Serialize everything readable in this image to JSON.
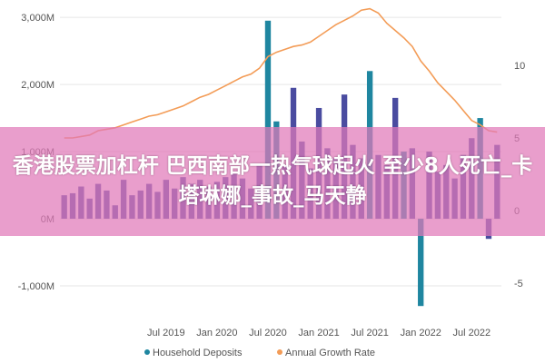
{
  "banner": {
    "text": "香港股票加杠杆 巴西南部一热气球起火 至少8人死亡_卡塔琳娜_事故_马天静"
  },
  "chart_data": {
    "type": "bar+line",
    "categories": [
      "2018-07",
      "2018-08",
      "2018-09",
      "2018-10",
      "2018-11",
      "2018-12",
      "2019-01",
      "2019-02",
      "2019-03",
      "2019-04",
      "2019-05",
      "2019-06",
      "2019-07",
      "2019-08",
      "2019-09",
      "2019-10",
      "2019-11",
      "2019-12",
      "2020-01",
      "2020-02",
      "2020-03",
      "2020-04",
      "2020-05",
      "2020-06",
      "2020-07",
      "2020-08",
      "2020-09",
      "2020-10",
      "2020-11",
      "2020-12",
      "2021-01",
      "2021-02",
      "2021-03",
      "2021-04",
      "2021-05",
      "2021-06",
      "2021-07",
      "2021-08",
      "2021-09",
      "2021-10",
      "2021-11",
      "2021-12",
      "2022-01",
      "2022-02",
      "2022-03",
      "2022-04",
      "2022-05",
      "2022-06",
      "2022-07",
      "2022-08",
      "2022-09",
      "2022-10"
    ],
    "x_tick_labels": [
      {
        "label": "Jul 2019",
        "at": "2019-07"
      },
      {
        "label": "Jan 2020",
        "at": "2020-01"
      },
      {
        "label": "Jul 2020",
        "at": "2020-07"
      },
      {
        "label": "Jan 2021",
        "at": "2021-01"
      },
      {
        "label": "Jul 2021",
        "at": "2021-07"
      },
      {
        "label": "Jan 2022",
        "at": "2022-01"
      },
      {
        "label": "Jul 2022",
        "at": "2022-07"
      }
    ],
    "series": [
      {
        "name": "Household Deposits",
        "kind": "bar",
        "axis": "left",
        "color": "#4a4ca0",
        "highlight_color": "#1f86a0",
        "values": [
          350,
          380,
          480,
          300,
          520,
          420,
          200,
          580,
          350,
          420,
          520,
          400,
          580,
          450,
          620,
          520,
          580,
          480,
          550,
          620,
          700,
          600,
          450,
          800,
          2950,
          1450,
          800,
          1950,
          1150,
          750,
          1650,
          1050,
          900,
          1850,
          1100,
          900,
          2200,
          950,
          800,
          1800,
          1000,
          1050,
          -1300,
          1000,
          700,
          800,
          600,
          950,
          1200,
          1500,
          -300,
          1100
        ]
      },
      {
        "name": "Annual Growth Rate",
        "kind": "line",
        "axis": "right",
        "color": "#f39c57",
        "values": [
          5.0,
          5.0,
          5.1,
          5.2,
          5.5,
          5.6,
          5.7,
          5.9,
          6.1,
          6.3,
          6.5,
          6.6,
          6.8,
          7.0,
          7.2,
          7.5,
          7.8,
          8.0,
          8.3,
          8.6,
          8.9,
          9.2,
          9.4,
          9.8,
          10.6,
          10.9,
          11.1,
          11.3,
          11.4,
          11.6,
          12.0,
          12.4,
          12.8,
          13.1,
          13.4,
          13.8,
          13.9,
          13.6,
          12.9,
          12.4,
          11.9,
          11.3,
          10.3,
          9.6,
          8.8,
          8.2,
          7.6,
          6.9,
          6.2,
          5.9,
          5.5,
          5.4
        ]
      }
    ],
    "highlight_indices": [
      24,
      25,
      36,
      40,
      42,
      49
    ],
    "y_left": {
      "ticks": [
        "-1,000M",
        "0M",
        "1,000M",
        "2,000M",
        "3,000M"
      ],
      "values": [
        -1000,
        0,
        1000,
        2000,
        3000
      ],
      "ylim": [
        -1500,
        3150
      ]
    },
    "y_right": {
      "ticks": [
        "-5",
        "0",
        "5",
        "10"
      ],
      "values": [
        -5,
        0,
        5,
        10
      ],
      "ylim": [
        -7.5,
        14
      ]
    },
    "grid": true,
    "legend_position": "bottom"
  }
}
